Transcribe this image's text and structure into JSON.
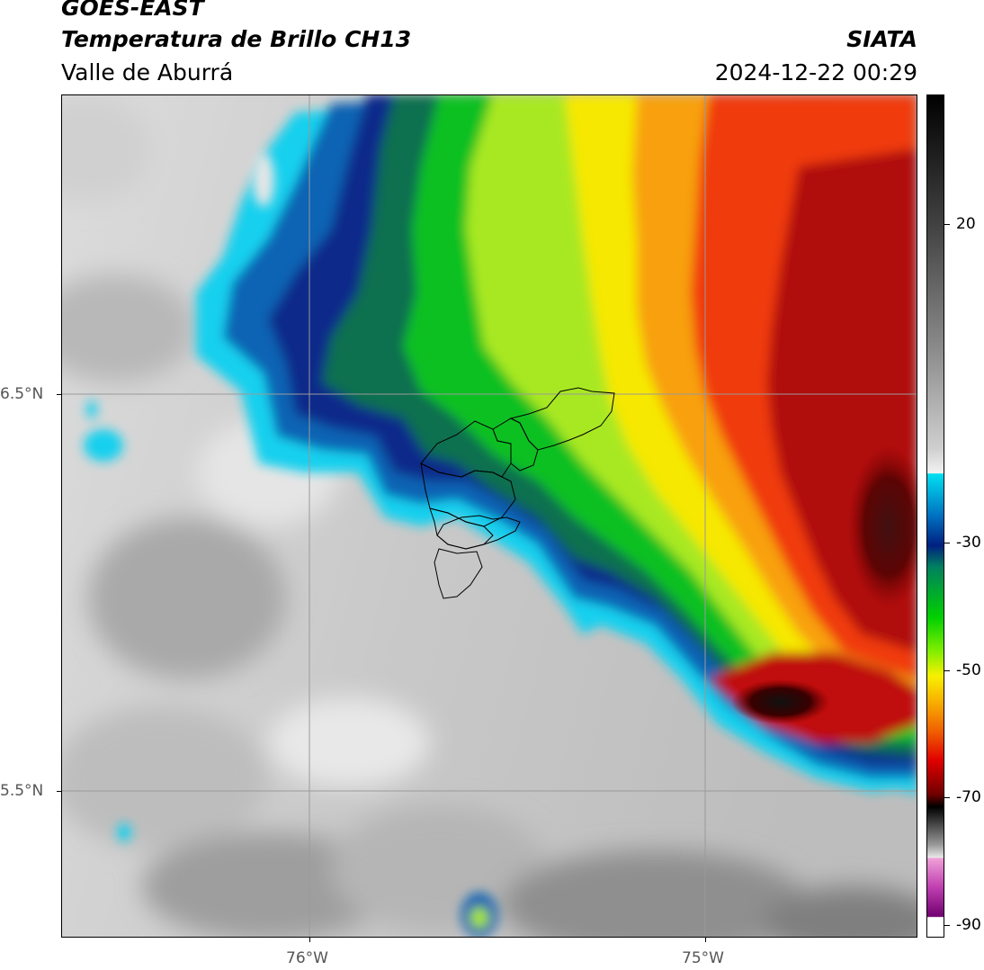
{
  "header": {
    "satellite": "GOES-EAST",
    "product": "Temperatura de Brillo CH13",
    "region": "Valle de Aburrá",
    "agency": "SIATA",
    "datetime": "2024-12-22 00:29"
  },
  "axes": {
    "x_ticks": [
      "76°W",
      "75°W"
    ],
    "y_ticks": [
      "6.5°N",
      "5.5°N"
    ]
  },
  "colorbar": {
    "tick_labels": [
      "20",
      "-30",
      "-50",
      "-70",
      "-90"
    ],
    "range": [
      -92,
      34
    ]
  },
  "colors": {
    "grid": "#9a9a9a",
    "boundary": "#000000"
  }
}
